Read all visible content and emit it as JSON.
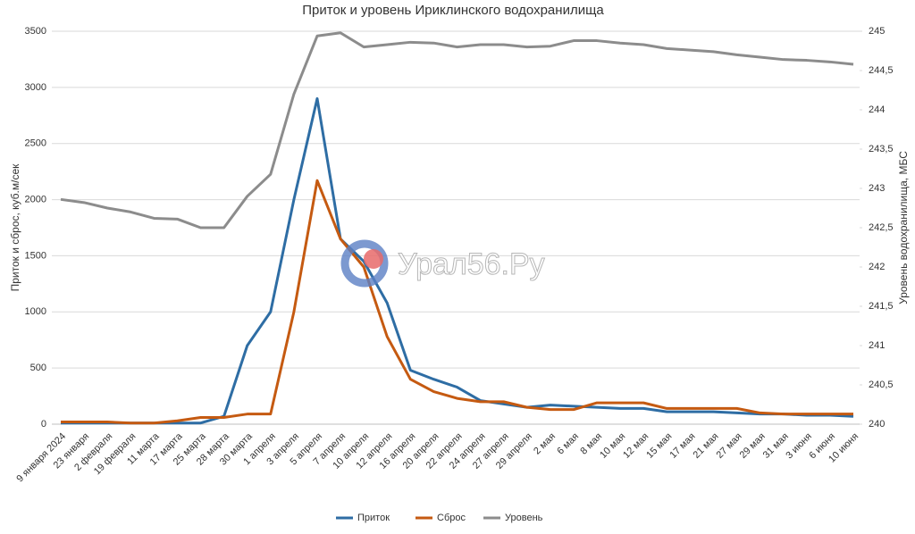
{
  "chart_data": {
    "type": "line",
    "title": "Приток и уровень Ириклинского водохранилища",
    "ylabel": "Приток и сброс, куб.м/сек",
    "y2label": "Уровень водохранилища, МБС",
    "watermark": "Урал56.Ру",
    "categories": [
      "9 января 2024",
      "23 января",
      "2 февраля",
      "19 февраля",
      "11 марта",
      "17 марта",
      "25 марта",
      "28 марта",
      "30 марта",
      "1 апреля",
      "3 апреля",
      "5 апреля",
      "7 апреля",
      "10 апреля",
      "12 апреля",
      "16 апреля",
      "20 апреля",
      "22 апреля",
      "24 апреля",
      "27 апреля",
      "29 апреля",
      "2 мая",
      "6 мая",
      "8 мая",
      "10 мая",
      "12 мая",
      "15 мая",
      "17 мая",
      "21 мая",
      "27 мая",
      "29 мая",
      "31 мая",
      "3 июня",
      "6 июня",
      "10 июня"
    ],
    "series": [
      {
        "name": "Приток",
        "color": "#2e6da4",
        "values": [
          10,
          10,
          10,
          10,
          10,
          10,
          10,
          70,
          700,
          1000,
          2000,
          2900,
          1650,
          1450,
          1080,
          480,
          400,
          330,
          210,
          180,
          150,
          170,
          160,
          150,
          140,
          140,
          110,
          110,
          110,
          100,
          90,
          90,
          80,
          80,
          70
        ]
      },
      {
        "name": "Сброс",
        "color": "#c55a11",
        "values": [
          20,
          20,
          20,
          10,
          10,
          30,
          60,
          60,
          90,
          90,
          1000,
          2170,
          1650,
          1400,
          780,
          400,
          290,
          230,
          200,
          200,
          150,
          130,
          130,
          190,
          190,
          190,
          140,
          140,
          140,
          140,
          100,
          90,
          90,
          90,
          90
        ]
      },
      {
        "name": "Уровень",
        "color": "#8c8c8c",
        "axis": "y2",
        "values": [
          242.86,
          242.82,
          242.75,
          242.7,
          242.62,
          242.61,
          242.5,
          242.5,
          242.9,
          243.18,
          244.2,
          244.94,
          244.98,
          244.8,
          244.83,
          244.86,
          244.85,
          244.8,
          244.83,
          244.83,
          244.8,
          244.81,
          244.88,
          244.88,
          244.85,
          244.83,
          244.78,
          244.76,
          244.74,
          244.7,
          244.67,
          244.64,
          244.63,
          244.61,
          244.58
        ]
      }
    ],
    "ylim": [
      0,
      3500
    ],
    "yticks": [
      0,
      500,
      1000,
      1500,
      2000,
      2500,
      3000,
      3500
    ],
    "y2lim": [
      240,
      245
    ],
    "y2ticks": [
      240,
      {
        "value": 240.5,
        "label": "240,5"
      },
      241,
      {
        "value": 241.5,
        "label": "241,5"
      },
      242,
      {
        "value": 242.5,
        "label": "242,5"
      },
      243,
      {
        "value": 243.5,
        "label": "243,5"
      },
      244,
      {
        "value": 244.5,
        "label": "244,5"
      },
      245
    ],
    "grid": true,
    "legend": "bottom"
  }
}
